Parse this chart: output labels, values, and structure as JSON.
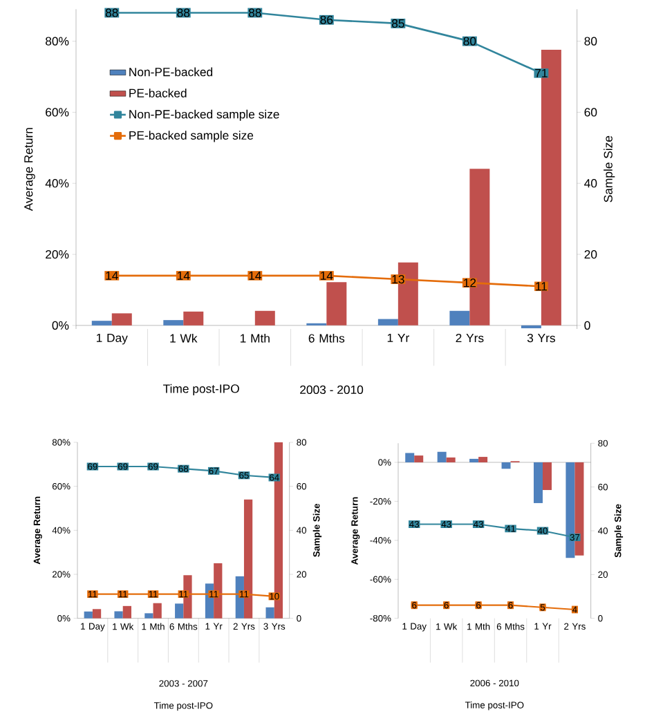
{
  "chart_data": [
    {
      "type": "bar",
      "xlabel": "Time post-IPO",
      "ylabel": "Average Return",
      "y2label": "Sample Size",
      "annotations": [
        "2003 - 2010"
      ],
      "categories": [
        "1 Day",
        "1 Wk",
        "1 Mth",
        "6 Mths",
        "1 Yr",
        "2 Yrs",
        "3 Yrs"
      ],
      "ylim": [
        -1,
        89
      ],
      "yticks": [
        {
          "value": 0,
          "label": "0%"
        },
        {
          "value": 20,
          "label": "20%"
        },
        {
          "value": 40,
          "label": "40%"
        },
        {
          "value": 60,
          "label": "60%"
        },
        {
          "value": 80,
          "label": "80%"
        }
      ],
      "y2lim": [
        -1,
        89
      ],
      "y2ticks": [
        0,
        20,
        40,
        60,
        80
      ],
      "legend": "top left",
      "series": [
        {
          "name": "Non-PE-backed",
          "color": "#4f81bd",
          "values": [
            1.3,
            1.5,
            0,
            0.6,
            1.8,
            4.1,
            -0.8
          ]
        },
        {
          "name": "PE-backed",
          "color": "#c0504d",
          "values": [
            3.4,
            3.9,
            4.1,
            12.2,
            17.7,
            44.1,
            77.6
          ]
        },
        {
          "name": "Non-PE-backed sample size",
          "type": "line",
          "axis": "y2",
          "color": "#31859c",
          "marker": "square",
          "data_labels": true,
          "values": [
            88,
            88,
            88,
            86,
            85,
            80,
            71
          ]
        },
        {
          "name": "PE-backed sample size",
          "type": "line",
          "axis": "y2",
          "color": "#e46c0a",
          "marker": "square",
          "data_labels": true,
          "values": [
            14,
            14,
            14,
            14,
            13,
            12,
            11
          ]
        }
      ]
    },
    {
      "type": "bar",
      "xlabel": "Time post-IPO",
      "ylabel": "Average Return",
      "y2label": "Sample Size",
      "annotations": [
        "2003 - 2007"
      ],
      "categories": [
        "1 Day",
        "1 Wk",
        "1 Mth",
        "6 Mths",
        "1 Yr",
        "2 Yrs",
        "3 Yrs"
      ],
      "ylim": [
        0,
        80
      ],
      "yticks": [
        {
          "value": 0,
          "label": "0%"
        },
        {
          "value": 20,
          "label": "20%"
        },
        {
          "value": 40,
          "label": "40%"
        },
        {
          "value": 60,
          "label": "60%"
        },
        {
          "value": 80,
          "label": "80%"
        }
      ],
      "y2lim": [
        0,
        80
      ],
      "y2ticks": [
        0,
        20,
        40,
        60,
        80
      ],
      "series": [
        {
          "color": "#4f81bd",
          "values": [
            3.1,
            3.2,
            2.3,
            6.7,
            15.8,
            19.1,
            5.0
          ]
        },
        {
          "color": "#c0504d",
          "values": [
            4.2,
            5.6,
            6.9,
            19.6,
            25.0,
            54.0,
            80
          ]
        },
        {
          "type": "line",
          "axis": "y2",
          "color": "#31859c",
          "marker": "square",
          "data_labels": true,
          "values": [
            69,
            69,
            69,
            68,
            67,
            65,
            64
          ]
        },
        {
          "type": "line",
          "axis": "y2",
          "color": "#e46c0a",
          "marker": "square",
          "data_labels": true,
          "values": [
            11,
            11,
            11,
            11,
            11,
            11,
            10
          ]
        }
      ]
    },
    {
      "type": "bar",
      "xlabel": "Time post-IPO",
      "ylabel": "Average Return",
      "y2label": "Sample Size",
      "annotations": [
        "2006 - 2010"
      ],
      "categories": [
        "1 Day",
        "1 Wk",
        "1 Mth",
        "6 Mths",
        "1 Yr",
        "2 Yrs"
      ],
      "ylim": [
        -80,
        9.8
      ],
      "yticks": [
        {
          "value": -80,
          "label": "-80%"
        },
        {
          "value": -60,
          "label": "-60%"
        },
        {
          "value": -40,
          "label": "-40%"
        },
        {
          "value": -20,
          "label": "-20%"
        },
        {
          "value": 0,
          "label": "0%"
        }
      ],
      "y2lim": [
        0,
        80
      ],
      "y2ticks": [
        0,
        20,
        40,
        60,
        80
      ],
      "series": [
        {
          "color": "#4f81bd",
          "values": [
            4.8,
            5.4,
            1.8,
            -3.3,
            -20.9,
            -49.0
          ]
        },
        {
          "color": "#c0504d",
          "values": [
            3.5,
            2.5,
            2.8,
            0.6,
            -14.2,
            -47.8
          ]
        },
        {
          "type": "line",
          "axis": "y2",
          "color": "#31859c",
          "marker": "square",
          "data_labels": true,
          "values": [
            43,
            43,
            43,
            41,
            40,
            37
          ]
        },
        {
          "type": "line",
          "axis": "y2",
          "color": "#e46c0a",
          "marker": "square",
          "data_labels": true,
          "values": [
            6,
            6,
            6,
            6,
            5,
            4
          ]
        }
      ]
    }
  ]
}
